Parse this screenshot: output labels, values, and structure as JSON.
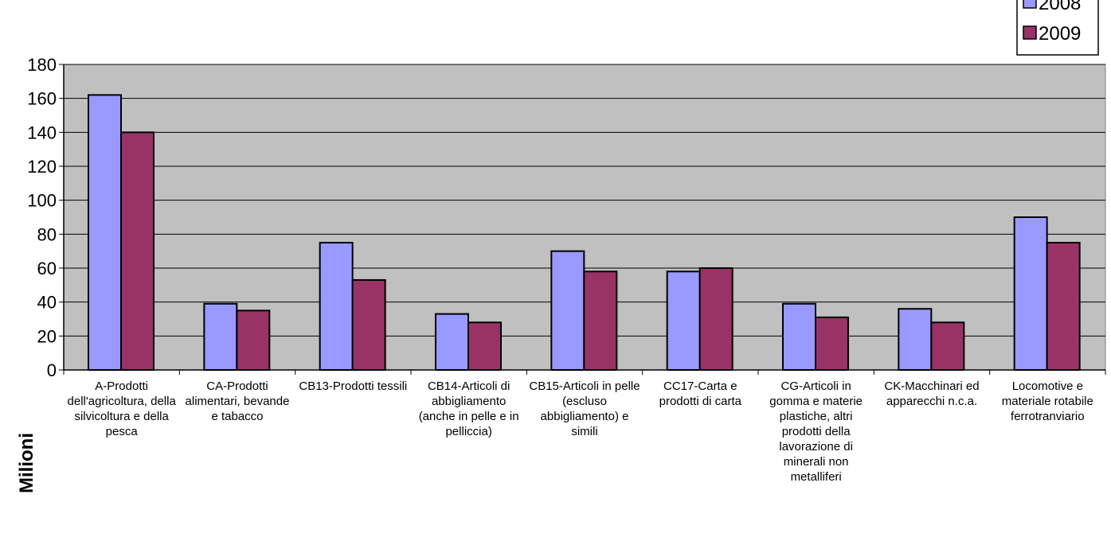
{
  "chart_data": {
    "type": "bar",
    "ylabel": "Milioni",
    "ylim": [
      0,
      180
    ],
    "ytick_step": 20,
    "grid": true,
    "legend_position": "top-right",
    "categories": [
      "A-Prodotti dell'agricoltura, della silvicoltura e della pesca",
      "CA-Prodotti alimentari, bevande e tabacco",
      "CB13-Prodotti tessili",
      "CB14-Articoli di abbigliamento (anche in pelle e in pelliccia)",
      "CB15-Articoli in pelle (escluso abbigliamento) e simili",
      "CC17-Carta e prodotti di carta",
      "CG-Articoli in gomma e materie plastiche, altri prodotti della lavorazione di minerali non metalliferi",
      "CK-Macchinari ed apparecchi n.c.a.",
      "Locomotive e materiale rotabile ferrotranviario"
    ],
    "series": [
      {
        "name": "2008",
        "color": "#9999ff",
        "values": [
          162,
          39,
          75,
          33,
          70,
          58,
          39,
          36,
          90
        ]
      },
      {
        "name": "2009",
        "color": "#993366",
        "values": [
          140,
          35,
          53,
          28,
          58,
          60,
          31,
          28,
          75
        ]
      }
    ]
  },
  "colors": {
    "plot_background": "#c0c0c0"
  }
}
